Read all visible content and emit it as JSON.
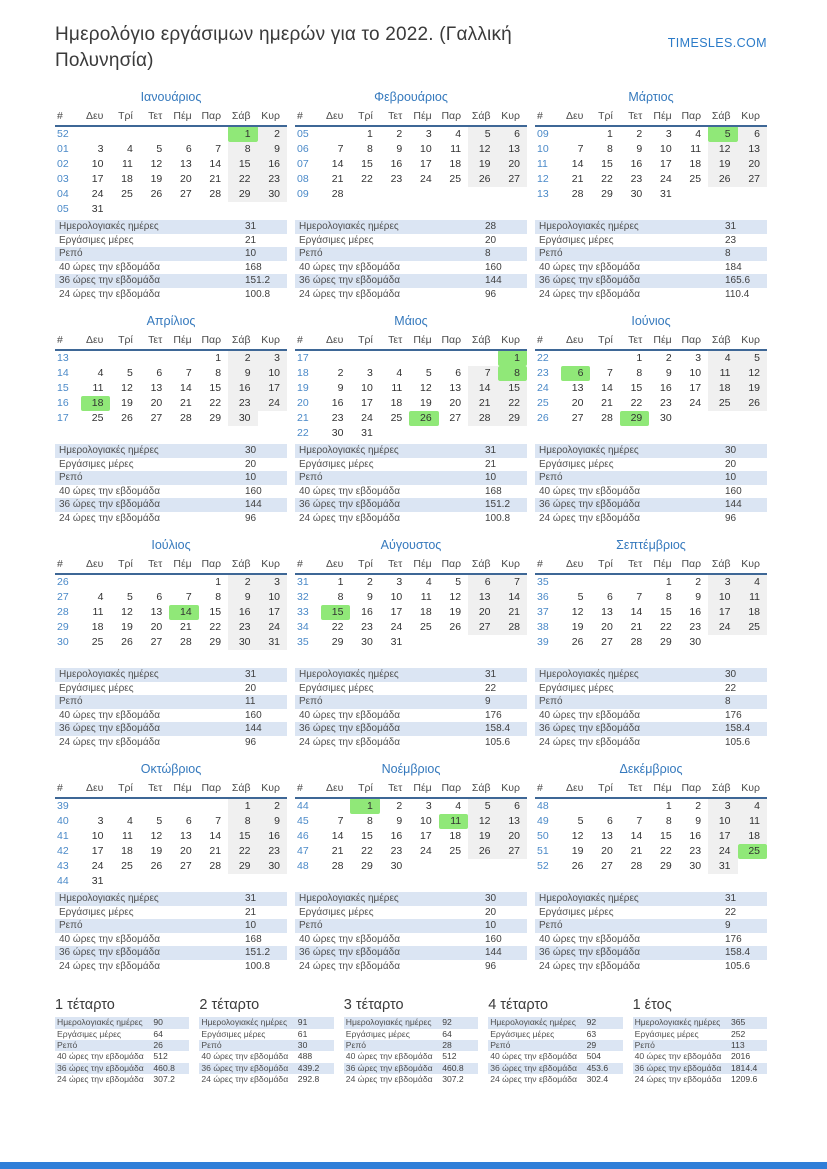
{
  "title": "Ημερολόγιο εργάσιμων ημερών για το 2022. (Γαλλική Πολυνησία)",
  "site": "TIMESLES.COM",
  "day_headers": [
    "#",
    "Δευ",
    "Τρί",
    "Τετ",
    "Πέμ",
    "Παρ",
    "Σάβ",
    "Κυρ"
  ],
  "stat_labels": [
    "Ημερολογιακές ημέρες",
    "Εργάσιμες μέρες",
    "Ρεπό",
    "40 ώρες την εβδομάδα",
    "36 ώρες την εβδομάδα",
    "24 ώρες την εβδομάδα"
  ],
  "colors": {
    "accent_blue": "#3579bd",
    "week_number_blue": "#4a89c8",
    "holiday_green": "#90e878",
    "weekend_gray": "#f0f0f0",
    "stats_row_blue": "#dbe5f3",
    "header_rule": "#3e6796",
    "footer_bar": "#2f7ed8"
  },
  "months": [
    {
      "name": "Ιανουάριος",
      "holidays": [
        1
      ],
      "weeks": [
        {
          "wn": "52",
          "days": [
            "",
            "",
            "",
            "",
            "",
            "1",
            "2"
          ]
        },
        {
          "wn": "01",
          "days": [
            "3",
            "4",
            "5",
            "6",
            "7",
            "8",
            "9"
          ]
        },
        {
          "wn": "02",
          "days": [
            "10",
            "11",
            "12",
            "13",
            "14",
            "15",
            "16"
          ]
        },
        {
          "wn": "03",
          "days": [
            "17",
            "18",
            "19",
            "20",
            "21",
            "22",
            "23"
          ]
        },
        {
          "wn": "04",
          "days": [
            "24",
            "25",
            "26",
            "27",
            "28",
            "29",
            "30"
          ]
        },
        {
          "wn": "05",
          "days": [
            "31",
            "",
            "",
            "",
            "",
            "",
            ""
          ]
        }
      ],
      "stats": [
        "31",
        "21",
        "10",
        "168",
        "151.2",
        "100.8"
      ]
    },
    {
      "name": "Φεβρουάριος",
      "holidays": [],
      "weeks": [
        {
          "wn": "05",
          "days": [
            "",
            "1",
            "2",
            "3",
            "4",
            "5",
            "6"
          ]
        },
        {
          "wn": "06",
          "days": [
            "7",
            "8",
            "9",
            "10",
            "11",
            "12",
            "13"
          ]
        },
        {
          "wn": "07",
          "days": [
            "14",
            "15",
            "16",
            "17",
            "18",
            "19",
            "20"
          ]
        },
        {
          "wn": "08",
          "days": [
            "21",
            "22",
            "23",
            "24",
            "25",
            "26",
            "27"
          ]
        },
        {
          "wn": "09",
          "days": [
            "28",
            "",
            "",
            "",
            "",
            "",
            ""
          ]
        }
      ],
      "stats": [
        "28",
        "20",
        "8",
        "160",
        "144",
        "96"
      ]
    },
    {
      "name": "Μάρτιος",
      "holidays": [
        5
      ],
      "weeks": [
        {
          "wn": "09",
          "days": [
            "",
            "1",
            "2",
            "3",
            "4",
            "5",
            "6"
          ]
        },
        {
          "wn": "10",
          "days": [
            "7",
            "8",
            "9",
            "10",
            "11",
            "12",
            "13"
          ]
        },
        {
          "wn": "11",
          "days": [
            "14",
            "15",
            "16",
            "17",
            "18",
            "19",
            "20"
          ]
        },
        {
          "wn": "12",
          "days": [
            "21",
            "22",
            "23",
            "24",
            "25",
            "26",
            "27"
          ]
        },
        {
          "wn": "13",
          "days": [
            "28",
            "29",
            "30",
            "31",
            "",
            "",
            ""
          ]
        }
      ],
      "stats": [
        "31",
        "23",
        "8",
        "184",
        "165.6",
        "110.4"
      ]
    },
    {
      "name": "Απρίλιος",
      "holidays": [
        18
      ],
      "weeks": [
        {
          "wn": "13",
          "days": [
            "",
            "",
            "",
            "",
            "1",
            "2",
            "3"
          ]
        },
        {
          "wn": "14",
          "days": [
            "4",
            "5",
            "6",
            "7",
            "8",
            "9",
            "10"
          ]
        },
        {
          "wn": "15",
          "days": [
            "11",
            "12",
            "13",
            "14",
            "15",
            "16",
            "17"
          ]
        },
        {
          "wn": "16",
          "days": [
            "18",
            "19",
            "20",
            "21",
            "22",
            "23",
            "24"
          ]
        },
        {
          "wn": "17",
          "days": [
            "25",
            "26",
            "27",
            "28",
            "29",
            "30",
            ""
          ]
        }
      ],
      "stats": [
        "30",
        "20",
        "10",
        "160",
        "144",
        "96"
      ]
    },
    {
      "name": "Μάιος",
      "holidays": [
        1,
        8,
        26
      ],
      "weeks": [
        {
          "wn": "17",
          "days": [
            "",
            "",
            "",
            "",
            "",
            "",
            "1"
          ]
        },
        {
          "wn": "18",
          "days": [
            "2",
            "3",
            "4",
            "5",
            "6",
            "7",
            "8"
          ]
        },
        {
          "wn": "19",
          "days": [
            "9",
            "10",
            "11",
            "12",
            "13",
            "14",
            "15"
          ]
        },
        {
          "wn": "20",
          "days": [
            "16",
            "17",
            "18",
            "19",
            "20",
            "21",
            "22"
          ]
        },
        {
          "wn": "21",
          "days": [
            "23",
            "24",
            "25",
            "26",
            "27",
            "28",
            "29"
          ]
        },
        {
          "wn": "22",
          "days": [
            "30",
            "31",
            "",
            "",
            "",
            "",
            ""
          ]
        }
      ],
      "stats": [
        "31",
        "21",
        "10",
        "168",
        "151.2",
        "100.8"
      ]
    },
    {
      "name": "Ιούνιος",
      "holidays": [
        6,
        29
      ],
      "weeks": [
        {
          "wn": "22",
          "days": [
            "",
            "",
            "1",
            "2",
            "3",
            "4",
            "5"
          ]
        },
        {
          "wn": "23",
          "days": [
            "6",
            "7",
            "8",
            "9",
            "10",
            "11",
            "12"
          ]
        },
        {
          "wn": "24",
          "days": [
            "13",
            "14",
            "15",
            "16",
            "17",
            "18",
            "19"
          ]
        },
        {
          "wn": "25",
          "days": [
            "20",
            "21",
            "22",
            "23",
            "24",
            "25",
            "26"
          ]
        },
        {
          "wn": "26",
          "days": [
            "27",
            "28",
            "29",
            "30",
            "",
            "",
            ""
          ]
        }
      ],
      "stats": [
        "30",
        "20",
        "10",
        "160",
        "144",
        "96"
      ]
    },
    {
      "name": "Ιούλιος",
      "holidays": [
        14
      ],
      "weeks": [
        {
          "wn": "26",
          "days": [
            "",
            "",
            "",
            "",
            "1",
            "2",
            "3"
          ]
        },
        {
          "wn": "27",
          "days": [
            "4",
            "5",
            "6",
            "7",
            "8",
            "9",
            "10"
          ]
        },
        {
          "wn": "28",
          "days": [
            "11",
            "12",
            "13",
            "14",
            "15",
            "16",
            "17"
          ]
        },
        {
          "wn": "29",
          "days": [
            "18",
            "19",
            "20",
            "21",
            "22",
            "23",
            "24"
          ]
        },
        {
          "wn": "30",
          "days": [
            "25",
            "26",
            "27",
            "28",
            "29",
            "30",
            "31"
          ]
        }
      ],
      "stats": [
        "31",
        "20",
        "11",
        "160",
        "144",
        "96"
      ]
    },
    {
      "name": "Αύγουστος",
      "holidays": [
        15
      ],
      "weeks": [
        {
          "wn": "31",
          "days": [
            "1",
            "2",
            "3",
            "4",
            "5",
            "6",
            "7"
          ]
        },
        {
          "wn": "32",
          "days": [
            "8",
            "9",
            "10",
            "11",
            "12",
            "13",
            "14"
          ]
        },
        {
          "wn": "33",
          "days": [
            "15",
            "16",
            "17",
            "18",
            "19",
            "20",
            "21"
          ]
        },
        {
          "wn": "34",
          "days": [
            "22",
            "23",
            "24",
            "25",
            "26",
            "27",
            "28"
          ]
        },
        {
          "wn": "35",
          "days": [
            "29",
            "30",
            "31",
            "",
            "",
            "",
            ""
          ]
        }
      ],
      "stats": [
        "31",
        "22",
        "9",
        "176",
        "158.4",
        "105.6"
      ]
    },
    {
      "name": "Σεπτέμβριος",
      "holidays": [],
      "weeks": [
        {
          "wn": "35",
          "days": [
            "",
            "",
            "",
            "1",
            "2",
            "3",
            "4"
          ]
        },
        {
          "wn": "36",
          "days": [
            "5",
            "6",
            "7",
            "8",
            "9",
            "10",
            "11"
          ]
        },
        {
          "wn": "37",
          "days": [
            "12",
            "13",
            "14",
            "15",
            "16",
            "17",
            "18"
          ]
        },
        {
          "wn": "38",
          "days": [
            "19",
            "20",
            "21",
            "22",
            "23",
            "24",
            "25"
          ]
        },
        {
          "wn": "39",
          "days": [
            "26",
            "27",
            "28",
            "29",
            "30",
            "",
            ""
          ]
        }
      ],
      "stats": [
        "30",
        "22",
        "8",
        "176",
        "158.4",
        "105.6"
      ]
    },
    {
      "name": "Οκτώβριος",
      "holidays": [],
      "weeks": [
        {
          "wn": "39",
          "days": [
            "",
            "",
            "",
            "",
            "",
            "1",
            "2"
          ]
        },
        {
          "wn": "40",
          "days": [
            "3",
            "4",
            "5",
            "6",
            "7",
            "8",
            "9"
          ]
        },
        {
          "wn": "41",
          "days": [
            "10",
            "11",
            "12",
            "13",
            "14",
            "15",
            "16"
          ]
        },
        {
          "wn": "42",
          "days": [
            "17",
            "18",
            "19",
            "20",
            "21",
            "22",
            "23"
          ]
        },
        {
          "wn": "43",
          "days": [
            "24",
            "25",
            "26",
            "27",
            "28",
            "29",
            "30"
          ]
        },
        {
          "wn": "44",
          "days": [
            "31",
            "",
            "",
            "",
            "",
            "",
            ""
          ]
        }
      ],
      "stats": [
        "31",
        "21",
        "10",
        "168",
        "151.2",
        "100.8"
      ]
    },
    {
      "name": "Νοέμβριος",
      "holidays": [
        1,
        11
      ],
      "weeks": [
        {
          "wn": "44",
          "days": [
            "",
            "1",
            "2",
            "3",
            "4",
            "5",
            "6"
          ]
        },
        {
          "wn": "45",
          "days": [
            "7",
            "8",
            "9",
            "10",
            "11",
            "12",
            "13"
          ]
        },
        {
          "wn": "46",
          "days": [
            "14",
            "15",
            "16",
            "17",
            "18",
            "19",
            "20"
          ]
        },
        {
          "wn": "47",
          "days": [
            "21",
            "22",
            "23",
            "24",
            "25",
            "26",
            "27"
          ]
        },
        {
          "wn": "48",
          "days": [
            "28",
            "29",
            "30",
            "",
            "",
            "",
            ""
          ]
        }
      ],
      "stats": [
        "30",
        "20",
        "10",
        "160",
        "144",
        "96"
      ]
    },
    {
      "name": "Δεκέμβριος",
      "holidays": [
        25
      ],
      "weeks": [
        {
          "wn": "48",
          "days": [
            "",
            "",
            "",
            "1",
            "2",
            "3",
            "4"
          ]
        },
        {
          "wn": "49",
          "days": [
            "5",
            "6",
            "7",
            "8",
            "9",
            "10",
            "11"
          ]
        },
        {
          "wn": "50",
          "days": [
            "12",
            "13",
            "14",
            "15",
            "16",
            "17",
            "18"
          ]
        },
        {
          "wn": "51",
          "days": [
            "19",
            "20",
            "21",
            "22",
            "23",
            "24",
            "25"
          ]
        },
        {
          "wn": "52",
          "days": [
            "26",
            "27",
            "28",
            "29",
            "30",
            "31",
            ""
          ]
        }
      ],
      "stats": [
        "31",
        "22",
        "9",
        "176",
        "158.4",
        "105.6"
      ]
    }
  ],
  "summaries": [
    {
      "title": "1 τέταρτο",
      "stats": [
        "90",
        "64",
        "26",
        "512",
        "460.8",
        "307.2"
      ]
    },
    {
      "title": "2 τέταρτο",
      "stats": [
        "91",
        "61",
        "30",
        "488",
        "439.2",
        "292.8"
      ]
    },
    {
      "title": "3 τέταρτο",
      "stats": [
        "92",
        "64",
        "28",
        "512",
        "460.8",
        "307.2"
      ]
    },
    {
      "title": "4 τέταρτο",
      "stats": [
        "92",
        "63",
        "29",
        "504",
        "453.6",
        "302.4"
      ]
    },
    {
      "title": "1 έτος",
      "stats": [
        "365",
        "252",
        "113",
        "2016",
        "1814.4",
        "1209.6"
      ]
    }
  ]
}
